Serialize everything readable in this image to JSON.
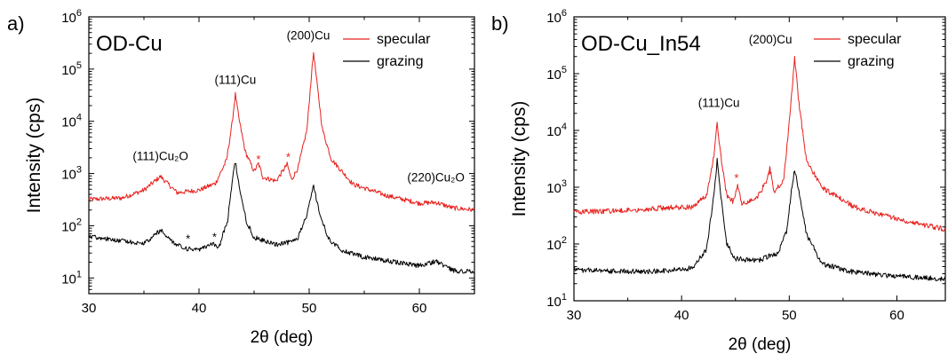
{
  "chart_data": [
    {
      "type": "line",
      "panel_letter": "a)",
      "title": "OD-Cu",
      "xlabel": "2θ (deg)",
      "ylabel": "Intensity (cps)",
      "xlim": [
        30,
        65
      ],
      "ylim": [
        5,
        1000000
      ],
      "yscale": "log",
      "x_ticks": [
        30,
        40,
        50,
        60
      ],
      "y_ticks": [
        "10^1",
        "10^2",
        "10^3",
        "10^4",
        "10^5",
        "10^6"
      ],
      "grid": false,
      "legend_position": "top-right",
      "series": [
        {
          "name": "specular",
          "color": "#e8201c",
          "x": [
            30,
            33,
            35,
            36.5,
            38,
            40,
            41.5,
            42.5,
            43,
            43.3,
            43.6,
            44.2,
            45,
            45.4,
            45.8,
            47,
            48,
            48.4,
            49,
            49.8,
            50.2,
            50.4,
            50.7,
            51.2,
            52,
            54,
            57,
            60,
            61.5,
            63,
            65
          ],
          "y": [
            320,
            340,
            480,
            880,
            430,
            480,
            650,
            1800,
            9000,
            33000,
            12000,
            2600,
            1100,
            1550,
            850,
            720,
            1500,
            760,
            1300,
            7000,
            75000,
            210000,
            55000,
            7000,
            1900,
            620,
            380,
            270,
            280,
            220,
            200
          ]
        },
        {
          "name": "grazing",
          "color": "#000000",
          "x": [
            30,
            33,
            35,
            36.5,
            38,
            39,
            40,
            41.3,
            41.8,
            42.6,
            43,
            43.3,
            43.7,
            44.3,
            45,
            47,
            48,
            49,
            49.8,
            50.4,
            51,
            51.8,
            53,
            55,
            58,
            60,
            61.5,
            63,
            65
          ],
          "y": [
            63,
            52,
            45,
            82,
            42,
            36,
            34,
            46,
            38,
            130,
            700,
            1700,
            500,
            120,
            60,
            44,
            47,
            60,
            160,
            590,
            150,
            55,
            33,
            25,
            20,
            17,
            21,
            14,
            13
          ]
        }
      ],
      "annotations": [
        {
          "text": "(111)Cu",
          "x": 43.3,
          "y": 52000
        },
        {
          "text": "(200)Cu",
          "x": 50.4,
          "y": 370000
        },
        {
          "text": "(111)Cu₂O",
          "x": 36.5,
          "y": 1800
        },
        {
          "text": "(220)Cu₂O",
          "x": 61.5,
          "y": 700
        }
      ],
      "markers": [
        {
          "text": "*",
          "x": 45.4,
          "y": 2000,
          "color": "#e8201c"
        },
        {
          "text": "*",
          "x": 48.1,
          "y": 2200,
          "color": "#e8201c"
        },
        {
          "text": "*",
          "x": 39.0,
          "y": 60,
          "color": "#000000"
        },
        {
          "text": "*",
          "x": 41.4,
          "y": 65,
          "color": "#000000"
        }
      ]
    },
    {
      "type": "line",
      "panel_letter": "b)",
      "title": "OD-Cu_In54",
      "xlabel": "2θ (deg)",
      "ylabel": "Intensity (cps)",
      "xlim": [
        30,
        64.5
      ],
      "ylim": [
        10,
        1000000
      ],
      "yscale": "log",
      "x_ticks": [
        30,
        40,
        50,
        60
      ],
      "y_ticks": [
        "10^1",
        "10^2",
        "10^3",
        "10^4",
        "10^5",
        "10^6"
      ],
      "grid": false,
      "legend_position": "top-right",
      "series": [
        {
          "name": "specular",
          "color": "#e8201c",
          "x": [
            30,
            34,
            38,
            41,
            42.3,
            43,
            43.3,
            43.6,
            44.2,
            44.8,
            45.2,
            45.6,
            47,
            47.8,
            48.2,
            48.6,
            49.5,
            50.1,
            50.5,
            50.9,
            51.6,
            53,
            56,
            60,
            64.5
          ],
          "y": [
            370,
            380,
            430,
            450,
            700,
            3500,
            13000,
            4000,
            700,
            560,
            1050,
            500,
            650,
            1200,
            2100,
            800,
            1400,
            22000,
            190000,
            30000,
            3000,
            1000,
            450,
            280,
            180
          ]
        },
        {
          "name": "grazing",
          "color": "#000000",
          "x": [
            30,
            34,
            38,
            41,
            42.3,
            43,
            43.3,
            43.6,
            44.2,
            45,
            47,
            49,
            49.8,
            50.2,
            50.5,
            50.9,
            51.6,
            53,
            56,
            60,
            64.5
          ],
          "y": [
            35,
            33,
            33,
            38,
            80,
            700,
            3000,
            800,
            100,
            55,
            50,
            70,
            180,
            900,
            2100,
            800,
            150,
            45,
            32,
            27,
            24
          ]
        }
      ],
      "annotations": [
        {
          "text": "(111)Cu",
          "x": 43.3,
          "y": 26000
        },
        {
          "text": "(200)Cu",
          "x": 50.4,
          "y": 340000
        }
      ],
      "markers": [
        {
          "text": "*",
          "x": 45.1,
          "y": 1550,
          "color": "#e8201c"
        },
        {
          "text": "*",
          "x": 48.2,
          "y": 1750,
          "color": "#e8201c"
        }
      ]
    }
  ]
}
